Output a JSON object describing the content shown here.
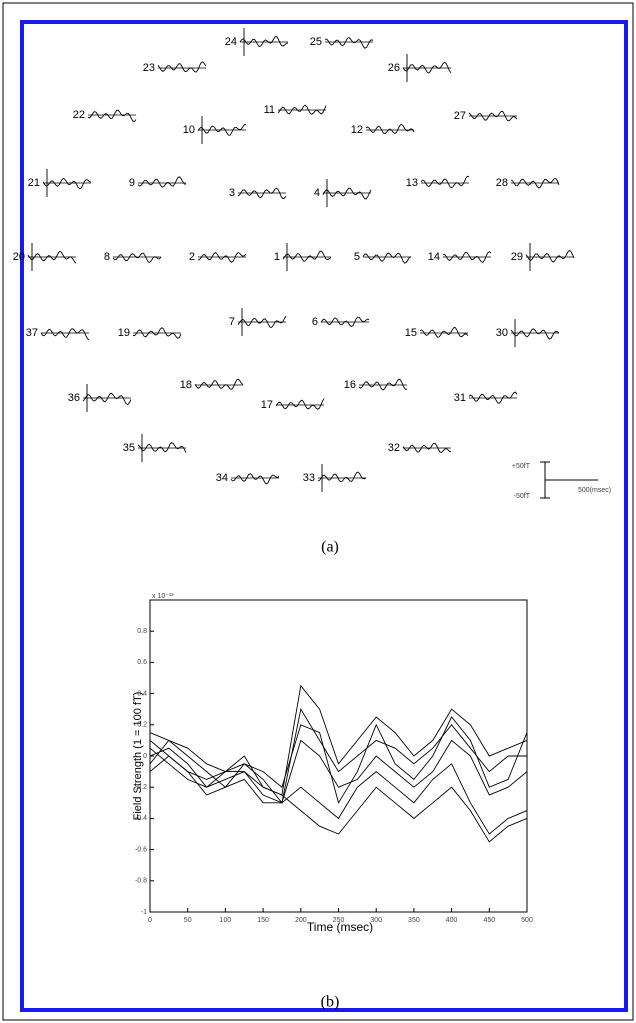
{
  "panel_a": {
    "caption": "(a)",
    "channels": [
      "24",
      "25",
      "23",
      "26",
      "22",
      "11",
      "10",
      "12",
      "27",
      "21",
      "9",
      "3",
      "4",
      "13",
      "28",
      "20",
      "8",
      "2",
      "1",
      "5",
      "14",
      "29",
      "37",
      "19",
      "7",
      "6",
      "15",
      "30",
      "18",
      "16",
      "36",
      "17",
      "31",
      "35",
      "32",
      "34",
      "33"
    ],
    "scale_bar": {
      "top_label": "+50fT",
      "bottom_label": "-50fT",
      "time_label": "500(msec)"
    }
  },
  "chart_data": {
    "type": "line",
    "caption": "(b)",
    "x_label": "Time (msec)",
    "y_label": "Field Strength (1 = 100 fT)",
    "exponent_label": "x 10⁻¹³",
    "x": [
      0,
      25,
      50,
      75,
      100,
      125,
      150,
      175,
      200,
      225,
      250,
      275,
      300,
      325,
      350,
      375,
      400,
      425,
      450,
      475,
      500
    ],
    "series": [
      {
        "color": "#000000",
        "values": [
          0.1,
          0,
          -0.1,
          -0.15,
          -0.1,
          0,
          -0.2,
          -0.25,
          0.45,
          0.3,
          -0.05,
          0.1,
          0.25,
          0.15,
          0,
          0.1,
          0.3,
          0.2,
          0,
          0.05,
          0.1
        ]
      },
      {
        "color": "#000000",
        "values": [
          0,
          0.05,
          -0.05,
          -0.2,
          -0.15,
          -0.1,
          -0.25,
          -0.3,
          0.3,
          0.1,
          -0.1,
          0,
          0.1,
          0.05,
          -0.05,
          0.05,
          0.2,
          0.05,
          -0.1,
          0,
          0
        ]
      },
      {
        "color": "#000000",
        "values": [
          -0.05,
          0.1,
          0,
          -0.1,
          -0.2,
          -0.15,
          -0.3,
          -0.3,
          -0.2,
          -0.3,
          -0.4,
          -0.2,
          -0.1,
          -0.2,
          -0.3,
          -0.15,
          -0.05,
          -0.3,
          -0.5,
          -0.4,
          -0.35
        ]
      },
      {
        "color": "#000000",
        "values": [
          0.05,
          -0.05,
          -0.15,
          -0.2,
          -0.1,
          -0.05,
          -0.15,
          -0.3,
          0.1,
          0,
          -0.2,
          -0.15,
          0,
          -0.1,
          -0.2,
          -0.1,
          0.1,
          0,
          -0.25,
          -0.2,
          -0.1
        ]
      },
      {
        "color": "#000000",
        "values": [
          0.15,
          0.1,
          0.05,
          -0.05,
          -0.1,
          -0.1,
          -0.2,
          -0.25,
          -0.35,
          -0.45,
          -0.5,
          -0.35,
          -0.2,
          -0.3,
          -0.4,
          -0.3,
          -0.2,
          -0.35,
          -0.55,
          -0.45,
          -0.4
        ]
      },
      {
        "color": "#000000",
        "values": [
          -0.1,
          0,
          -0.1,
          -0.25,
          -0.2,
          -0.05,
          -0.1,
          -0.2,
          0.2,
          0.15,
          -0.3,
          -0.1,
          0.2,
          -0.05,
          -0.15,
          0,
          0.25,
          0.1,
          -0.2,
          -0.15,
          0.15
        ]
      }
    ],
    "xlim": [
      0,
      500
    ],
    "xticks": [
      0,
      50,
      100,
      150,
      200,
      250,
      300,
      350,
      400,
      450,
      500
    ],
    "ylim": [
      -1,
      1
    ],
    "yticks": [
      -1,
      -0.8,
      -0.6,
      -0.4,
      -0.2,
      0,
      0.2,
      0.4,
      0.6,
      0.8
    ]
  }
}
